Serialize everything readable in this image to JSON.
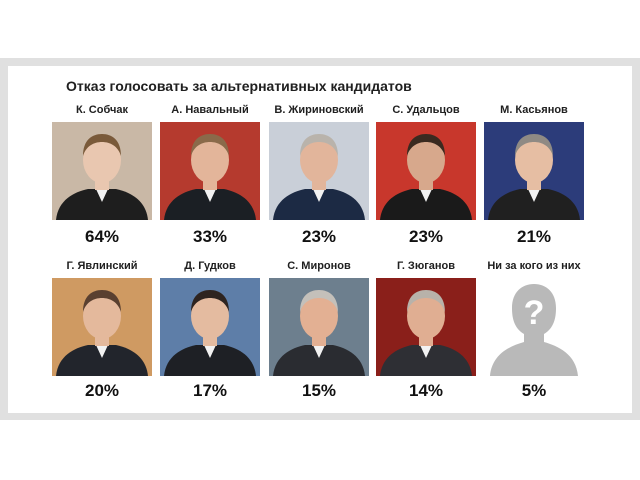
{
  "chart_data": {
    "type": "bar",
    "title": "Отказ голосовать за альтернативных кандидатов",
    "categories": [
      "К. Собчак",
      "А. Навальный",
      "В. Жириновский",
      "С. Удальцов",
      "М. Касьянов",
      "Г. Явлинский",
      "Д. Гудков",
      "С. Миронов",
      "Г. Зюганов",
      "Ни за кого из них"
    ],
    "values": [
      64,
      33,
      23,
      23,
      21,
      20,
      17,
      15,
      14,
      5
    ],
    "value_labels": [
      "64%",
      "33%",
      "23%",
      "23%",
      "21%",
      "20%",
      "17%",
      "15%",
      "14%",
      "5%"
    ],
    "unit": "%"
  },
  "candidates": [
    {
      "name": "К. Собчак",
      "pct": "64%",
      "bg": "#c9b8a6",
      "skin": "#e9c7b0",
      "hair": "#7a5a3a",
      "suit": "#1e1e1e",
      "icon": "portrait"
    },
    {
      "name": "А. Навальный",
      "pct": "33%",
      "bg": "#b53a2e",
      "skin": "#e3b59a",
      "hair": "#8a6a4a",
      "suit": "#1b1f24",
      "icon": "portrait"
    },
    {
      "name": "В. Жириновский",
      "pct": "23%",
      "bg": "#c9cfd8",
      "skin": "#e2b59b",
      "hair": "#b9b3ab",
      "suit": "#1c2a44",
      "icon": "portrait"
    },
    {
      "name": "С. Удальцов",
      "pct": "23%",
      "bg": "#c8372c",
      "skin": "#d7a88c",
      "hair": "#3a2a20",
      "suit": "#1a1a1a",
      "icon": "portrait"
    },
    {
      "name": "М. Касьянов",
      "pct": "21%",
      "bg": "#2c3c7a",
      "skin": "#e6bea3",
      "hair": "#8f8a84",
      "suit": "#202020",
      "icon": "portrait"
    },
    {
      "name": "Г. Явлинский",
      "pct": "20%",
      "bg": "#cf9a62",
      "skin": "#e4b99c",
      "hair": "#5a4030",
      "suit": "#22252c",
      "icon": "portrait"
    },
    {
      "name": "Д. Гудков",
      "pct": "17%",
      "bg": "#5e7ea8",
      "skin": "#e4bba0",
      "hair": "#2e2420",
      "suit": "#1e2025",
      "icon": "portrait"
    },
    {
      "name": "С. Миронов",
      "pct": "15%",
      "bg": "#6d7f8e",
      "skin": "#e3b093",
      "hair": "#c4c0ba",
      "suit": "#2a2c31",
      "icon": "portrait"
    },
    {
      "name": "Г. Зюганов",
      "pct": "14%",
      "bg": "#8a1f1a",
      "skin": "#e0ae92",
      "hair": "#b8b2aa",
      "suit": "#2e2f34",
      "icon": "portrait"
    },
    {
      "name": "Ни за кого из них",
      "pct": "5%",
      "bg": "#ffffff",
      "skin": "#b9b9b9",
      "hair": "#b9b9b9",
      "suit": "#b9b9b9",
      "icon": "unknown-person-silhouette"
    }
  ]
}
